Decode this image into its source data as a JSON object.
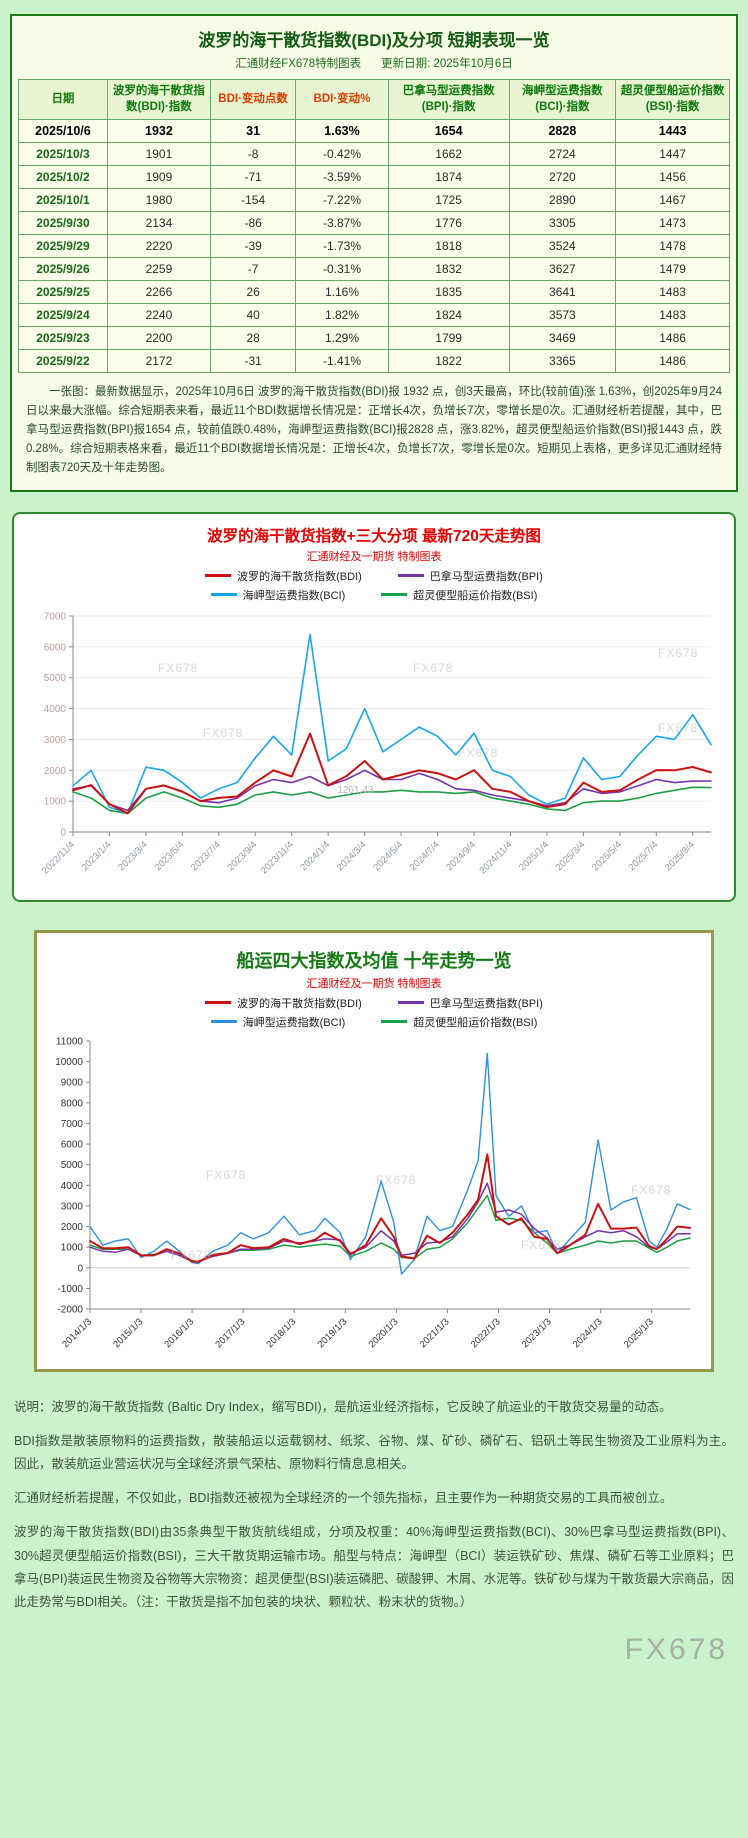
{
  "page": {
    "watermark": "FX678",
    "bg": "#ccf2cc"
  },
  "table_panel": {
    "title": "波罗的海干散货指数(BDI)及分项 短期表现一览",
    "subtitle_left": "汇通财经FX678特制图表",
    "subtitle_right": "更新日期: 2025年10月6日",
    "headers": [
      "日期",
      "波罗的海干散货指数(BDI)·指数",
      "BDI·变动点数",
      "BDI·变动%",
      "巴拿马型运费指数(BPI)·指数",
      "海岬型运费指数(BCI)·指数",
      "超灵便型船运价指数(BSI)·指数"
    ],
    "rows": [
      [
        "2025/10/6",
        "1932",
        "31",
        "1.63%",
        "1654",
        "2828",
        "1443"
      ],
      [
        "2025/10/3",
        "1901",
        "-8",
        "-0.42%",
        "1662",
        "2724",
        "1447"
      ],
      [
        "2025/10/2",
        "1909",
        "-71",
        "-3.59%",
        "1874",
        "2720",
        "1456"
      ],
      [
        "2025/10/1",
        "1980",
        "-154",
        "-7.22%",
        "1725",
        "2890",
        "1467"
      ],
      [
        "2025/9/30",
        "2134",
        "-86",
        "-3.87%",
        "1776",
        "3305",
        "1473"
      ],
      [
        "2025/9/29",
        "2220",
        "-39",
        "-1.73%",
        "1818",
        "3524",
        "1478"
      ],
      [
        "2025/9/26",
        "2259",
        "-7",
        "-0.31%",
        "1832",
        "3627",
        "1479"
      ],
      [
        "2025/9/25",
        "2266",
        "26",
        "1.16%",
        "1835",
        "3641",
        "1483"
      ],
      [
        "2025/9/24",
        "2240",
        "40",
        "1.82%",
        "1824",
        "3573",
        "1483"
      ],
      [
        "2025/9/23",
        "2200",
        "28",
        "1.29%",
        "1799",
        "3469",
        "1486"
      ],
      [
        "2025/9/22",
        "2172",
        "-31",
        "-1.41%",
        "1822",
        "3365",
        "1486"
      ]
    ],
    "note": "一张图：最新数据显示，2025年10月6日 波罗的海干散货指数(BDI)报 1932 点，创3天最高，环比(较前值)涨 1.63%，创2025年9月24日以来最大涨幅。综合短期表来看，最近11个BDI数据增长情况是：正增长4次，负增长7次，零增长是0次。汇通财经析若提醒，其中，巴拿马型运费指数(BPI)报1654 点，较前值跌0.48%，海岬型运费指数(BCI)报2828 点，涨3.82%，超灵便型船运价指数(BSI)报1443 点，跌0.28%。综合短期表格来看，最近11个BDI数据增长情况是：正增长4次，负增长7次，零增长是0次。短期见上表格，更多详见汇通财经特制图表720天及十年走势图。"
  },
  "chart_data": [
    {
      "type": "line",
      "title": "波罗的海干散货指数+三大分项  最新720天走势图",
      "subtitle": "汇通财经及一期货  特制图表",
      "ylim": [
        0,
        7000
      ],
      "y_step": 1000,
      "grid": true,
      "axis_color": "#c49a9a",
      "xtick_color": "#8f9aa8",
      "x_ticks": [
        {
          "v": 0,
          "label": "2022/11/4"
        },
        {
          "v": 2,
          "label": "2023/1/4"
        },
        {
          "v": 4,
          "label": "2023/3/4"
        },
        {
          "v": 6,
          "label": "2023/5/4"
        },
        {
          "v": 8,
          "label": "2023/7/4"
        },
        {
          "v": 10,
          "label": "2023/9/4"
        },
        {
          "v": 12,
          "label": "2023/11/4"
        },
        {
          "v": 14,
          "label": "2024/1/4"
        },
        {
          "v": 16,
          "label": "2024/3/4"
        },
        {
          "v": 18,
          "label": "2024/5/4"
        },
        {
          "v": 20,
          "label": "2024/7/4"
        },
        {
          "v": 22,
          "label": "2024/9/4"
        },
        {
          "v": 24,
          "label": "2024/11/4"
        },
        {
          "v": 26,
          "label": "2025/1/4"
        },
        {
          "v": 28,
          "label": "2025/3/4"
        },
        {
          "v": 30,
          "label": "2025/5/4"
        },
        {
          "v": 32,
          "label": "2025/7/4"
        },
        {
          "v": 34,
          "label": "2025/9/4"
        }
      ],
      "series": [
        {
          "name": "波罗的海干散货指数(BDI)",
          "color": "#cc1111",
          "width": 2,
          "values": [
            1350,
            1520,
            900,
            605,
            1400,
            1510,
            1310,
            1000,
            1105,
            1150,
            1605,
            2000,
            1800,
            3190,
            1510,
            1810,
            2300,
            1700,
            1850,
            2000,
            1905,
            1700,
            2005,
            1400,
            1300,
            1000,
            805,
            900,
            1600,
            1300,
            1350,
            1700,
            2005,
            2000,
            2105,
            1932
          ]
        },
        {
          "name": "巴拿马型运费指数(BPI)",
          "color": "#7733aa",
          "width": 1.6,
          "values": [
            1400,
            1500,
            900,
            700,
            1400,
            1500,
            1300,
            1000,
            950,
            1100,
            1500,
            1700,
            1600,
            1800,
            1500,
            1700,
            2000,
            1700,
            1700,
            1900,
            1700,
            1400,
            1350,
            1200,
            1100,
            1000,
            850,
            950,
            1400,
            1250,
            1300,
            1500,
            1700,
            1600,
            1650,
            1654
          ]
        },
        {
          "name": "海岬型运费指数(BCI)",
          "color": "#18a7e8",
          "width": 1.6,
          "values": [
            1500,
            2000,
            800,
            600,
            2100,
            2000,
            1600,
            1100,
            1400,
            1600,
            2400,
            3100,
            2500,
            6400,
            2300,
            2700,
            4000,
            2600,
            3000,
            3400,
            3100,
            2500,
            3200,
            2000,
            1800,
            1200,
            900,
            1100,
            2400,
            1700,
            1800,
            2500,
            3100,
            3000,
            3800,
            2828
          ]
        },
        {
          "name": "超灵便型船运价指数(BSI)",
          "color": "#1d9e45",
          "width": 1.6,
          "values": [
            1300,
            1100,
            700,
            600,
            1100,
            1300,
            1100,
            850,
            800,
            900,
            1200,
            1300,
            1200,
            1300,
            1100,
            1200,
            1300,
            1300,
            1350,
            1300,
            1300,
            1250,
            1300,
            1100,
            1000,
            900,
            750,
            700,
            950,
            1000,
            1000,
            1100,
            1250,
            1350,
            1450,
            1443
          ]
        }
      ],
      "annotations": [
        {
          "x": 14.5,
          "y": 1261,
          "text": "1261.43"
        }
      ]
    },
    {
      "type": "line",
      "title": "船运四大指数及均值 十年走势一览",
      "subtitle": "汇通财经及一期货 特制图表",
      "ylim": [
        -2000,
        11000
      ],
      "y_step": 1000,
      "grid": false,
      "zero_line": true,
      "axis_color": "#333333",
      "xtick_color": "#333333",
      "x": [
        2014.0,
        2014.25,
        2014.5,
        2014.75,
        2015.0,
        2015.25,
        2015.5,
        2015.75,
        2016.0,
        2016.12,
        2016.4,
        2016.7,
        2016.95,
        2017.2,
        2017.5,
        2017.8,
        2018.1,
        2018.4,
        2018.6,
        2018.9,
        2019.1,
        2019.4,
        2019.7,
        2019.95,
        2020.1,
        2020.35,
        2020.6,
        2020.85,
        2021.1,
        2021.4,
        2021.6,
        2021.78,
        2021.95,
        2022.2,
        2022.45,
        2022.7,
        2022.95,
        2023.15,
        2023.4,
        2023.7,
        2023.95,
        2024.2,
        2024.45,
        2024.7,
        2024.95,
        2025.1,
        2025.3,
        2025.5,
        2025.75
      ],
      "x_ticks": [
        {
          "v": 2014,
          "label": "2014/1/3"
        },
        {
          "v": 2015,
          "label": "2015/1/3"
        },
        {
          "v": 2016,
          "label": "2016/1/3"
        },
        {
          "v": 2017,
          "label": "2017/1/3"
        },
        {
          "v": 2018,
          "label": "2018/1/3"
        },
        {
          "v": 2019,
          "label": "2019/1/3"
        },
        {
          "v": 2020,
          "label": "2020/1/3"
        },
        {
          "v": 2021,
          "label": "2021/1/3"
        },
        {
          "v": 2022,
          "label": "2022/1/3"
        },
        {
          "v": 2023,
          "label": "2023/1/3"
        },
        {
          "v": 2024,
          "label": "2024/1/3"
        },
        {
          "v": 2025,
          "label": "2025/1/3"
        }
      ],
      "series": [
        {
          "name": "波罗的海干散货指数(BDI)",
          "color": "#cc1111",
          "width": 2,
          "values": [
            1300,
            950,
            950,
            1000,
            600,
            600,
            900,
            700,
            310,
            290,
            620,
            720,
            1100,
            950,
            1000,
            1400,
            1150,
            1350,
            1700,
            1300,
            650,
            1100,
            2400,
            1500,
            550,
            450,
            1550,
            1200,
            1700,
            2600,
            3300,
            5500,
            2500,
            2100,
            2400,
            1500,
            1400,
            700,
            1100,
            1600,
            3100,
            1900,
            1900,
            1950,
            1050,
            900,
            1400,
            2000,
            1932
          ]
        },
        {
          "name": "巴拿马型运费指数(BPI)",
          "color": "#7733aa",
          "width": 1.5,
          "values": [
            1000,
            800,
            750,
            900,
            600,
            600,
            800,
            600,
            300,
            290,
            550,
            700,
            900,
            900,
            950,
            1300,
            1200,
            1300,
            1400,
            1350,
            700,
            1000,
            1800,
            1300,
            600,
            700,
            1200,
            1250,
            1500,
            2400,
            3200,
            4100,
            2700,
            2800,
            2600,
            1900,
            1450,
            900,
            1100,
            1500,
            1800,
            1700,
            1800,
            1500,
            1000,
            900,
            1250,
            1650,
            1654
          ]
        },
        {
          "name": "海岬型运费指数(BCI)",
          "color": "#2e8fdf",
          "width": 1.4,
          "values": [
            2000,
            1100,
            1300,
            1400,
            500,
            800,
            1300,
            800,
            250,
            200,
            800,
            1100,
            1700,
            1400,
            1700,
            2500,
            1600,
            1800,
            2400,
            1700,
            400,
            1500,
            4200,
            2200,
            -300,
            400,
            2500,
            1800,
            2000,
            3800,
            5200,
            10400,
            3500,
            2500,
            3000,
            1700,
            1800,
            700,
            1400,
            2200,
            6200,
            2800,
            3200,
            3400,
            1300,
            1000,
            1900,
            3100,
            2828
          ]
        },
        {
          "name": "超灵便型船运价指数(BSI)",
          "color": "#1d9e45",
          "width": 1.5,
          "values": [
            1100,
            900,
            900,
            900,
            600,
            650,
            800,
            600,
            350,
            300,
            550,
            700,
            850,
            850,
            900,
            1100,
            1000,
            1100,
            1150,
            1050,
            550,
            800,
            1200,
            900,
            500,
            450,
            900,
            1000,
            1400,
            2200,
            2900,
            3500,
            2300,
            2400,
            2300,
            1700,
            1200,
            700,
            900,
            1100,
            1300,
            1200,
            1300,
            1300,
            950,
            750,
            1000,
            1300,
            1443
          ]
        }
      ]
    }
  ],
  "footer": {
    "paragraphs": [
      "说明：波罗的海干散货指数 (Baltic Dry Index，缩写BDI)，是航运业经济指标，它反映了航运业的干散货交易量的动态。",
      "BDI指数是散装原物料的运费指数，散装船运以运载钢材、纸浆、谷物、煤、矿砂、磷矿石、铝矾土等民生物资及工业原料为主。因此，散装航运业营运状况与全球经济景气荣枯、原物料行情息息相关。",
      "汇通财经析若提醒，不仅如此，BDI指数还被视为全球经济的一个领先指标，且主要作为一种期货交易的工具而被创立。",
      "波罗的海干散货指数(BDI)由35条典型干散货航线组成，分项及权重：40%海岬型运费指数(BCI)、30%巴拿马型运费指数(BPI)、30%超灵便型船运价指数(BSI)，三大干散货期运输市场。船型与特点：海岬型（BCI）装运铁矿砂、焦煤、磷矿石等工业原料；巴拿马(BPI)装运民生物资及谷物等大宗物资：超灵便型(BSI)装运磷肥、碳酸钾、木屑、水泥等。铁矿砂与煤为干散货最大宗商品，因此走势常与BDI相关。（注：干散货是指不加包装的块状、颗粒状、粉末状的货物。）"
    ]
  }
}
